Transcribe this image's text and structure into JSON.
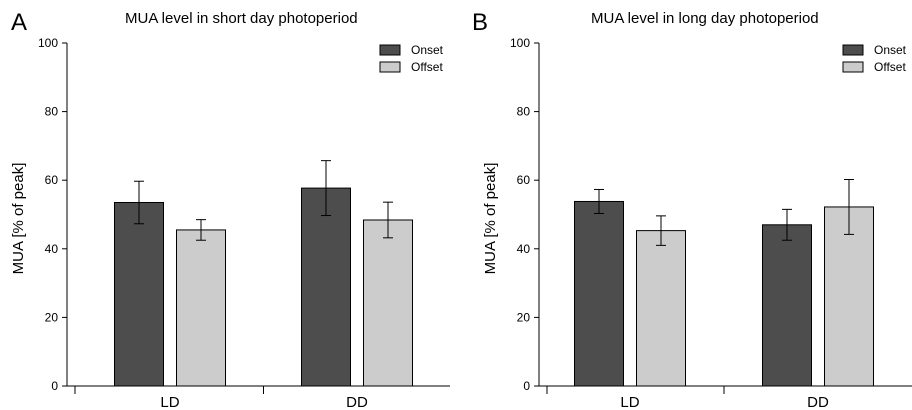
{
  "chart_data": [
    {
      "type": "bar",
      "panel_label": "A",
      "title": "MUA level in short day photoperiod",
      "xlabel": "",
      "ylabel": "MUA [% of peak]",
      "ylim": [
        0,
        100
      ],
      "yticks": [
        0,
        20,
        40,
        60,
        80,
        100
      ],
      "categories": [
        "LD",
        "DD"
      ],
      "series": [
        {
          "name": "Onset",
          "color": "#4d4d4d",
          "values": [
            53.5,
            57.7
          ],
          "errors": [
            6.2,
            8.0
          ]
        },
        {
          "name": "Offset",
          "color": "#cccccc",
          "values": [
            45.5,
            48.4
          ],
          "errors": [
            3.0,
            5.2
          ]
        }
      ],
      "legend_position": "top-right",
      "grid": false
    },
    {
      "type": "bar",
      "panel_label": "B",
      "title": "MUA level in long day photoperiod",
      "xlabel": "",
      "ylabel": "MUA [% of peak]",
      "ylim": [
        0,
        100
      ],
      "yticks": [
        0,
        20,
        40,
        60,
        80,
        100
      ],
      "categories": [
        "LD",
        "DD"
      ],
      "series": [
        {
          "name": "Onset",
          "color": "#4d4d4d",
          "values": [
            53.8,
            47.0
          ],
          "errors": [
            3.5,
            4.5
          ]
        },
        {
          "name": "Offset",
          "color": "#cccccc",
          "values": [
            45.3,
            52.2
          ],
          "errors": [
            4.3,
            8.0
          ]
        }
      ],
      "legend_position": "top-right",
      "grid": false
    }
  ]
}
